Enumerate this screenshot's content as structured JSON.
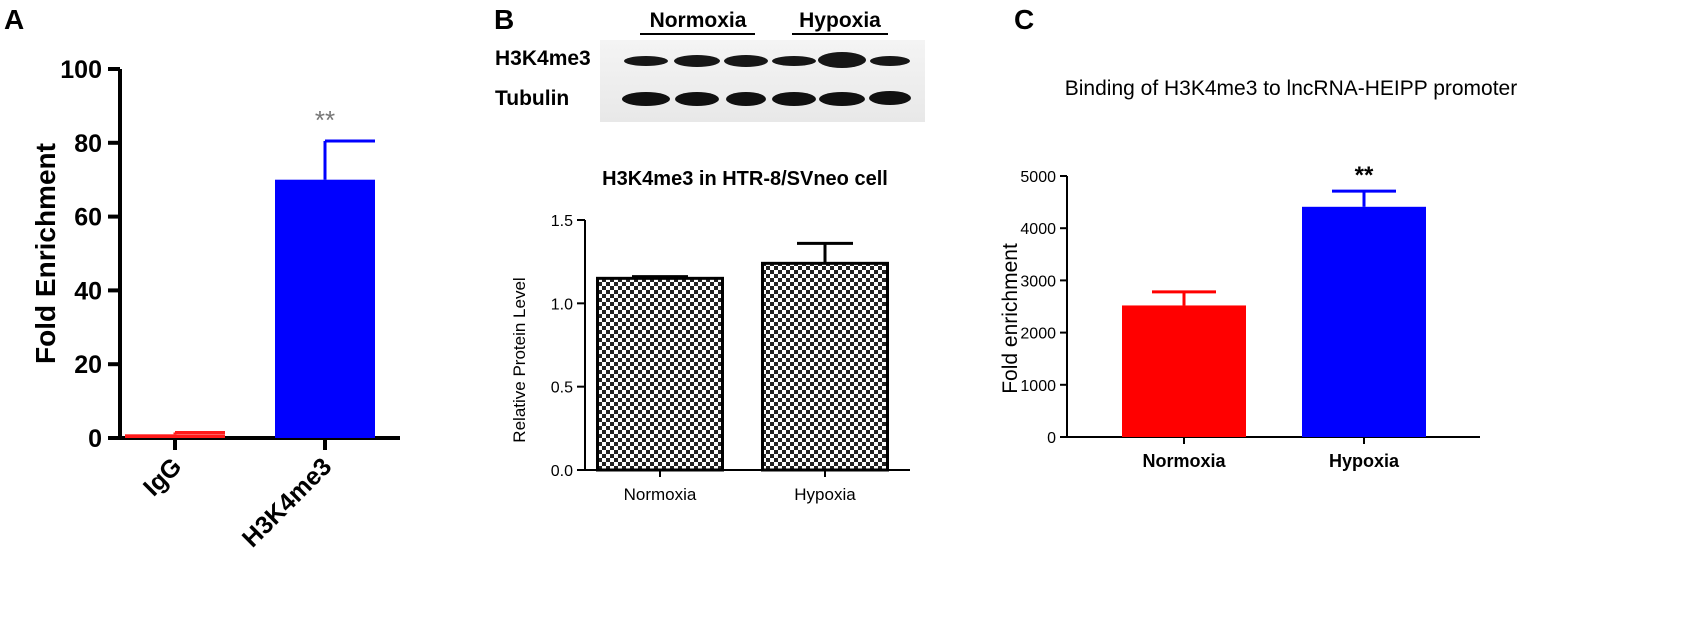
{
  "panels": {
    "a": {
      "letter": "A"
    },
    "b": {
      "letter": "B"
    },
    "c": {
      "letter": "C"
    }
  },
  "blot": {
    "group_labels": [
      "Normoxia",
      "Hypoxia"
    ],
    "row_labels": [
      "H3K4me3",
      "Tubulin"
    ]
  },
  "chart_data": [
    {
      "type": "bar",
      "panel": "A",
      "title": "",
      "xlabel": "",
      "ylabel": "Fold Enrichment",
      "categories": [
        "IgG",
        "H3K4me3"
      ],
      "values": [
        1,
        70
      ],
      "errors": [
        0.5,
        10.5
      ],
      "significance": [
        "",
        "**"
      ],
      "colors": [
        "#ff1a1a",
        "#0000ff"
      ],
      "ylim": [
        0,
        100
      ],
      "yticks": [
        0,
        20,
        40,
        60,
        80,
        100
      ],
      "grid": false
    },
    {
      "type": "bar",
      "panel": "B",
      "title": "H3K4me3 in HTR-8/SVneo cell",
      "xlabel": "",
      "ylabel": "Relative Protein Level",
      "categories": [
        "Normoxia",
        "Hypoxia"
      ],
      "values": [
        1.15,
        1.24
      ],
      "errors": [
        0.01,
        0.12
      ],
      "fill": "checkerboard",
      "ylim": [
        0,
        1.5
      ],
      "yticks": [
        "0.0",
        "0.5",
        "1.0",
        "1.5"
      ],
      "grid": false
    },
    {
      "type": "bar",
      "panel": "C",
      "title": "Binding of H3K4me3 to lncRNA-HEIPP promoter",
      "xlabel": "",
      "ylabel": "Fold enrichment",
      "categories": [
        "Normoxia",
        "Hypoxia"
      ],
      "values": [
        2520,
        4410
      ],
      "errors": [
        260,
        300
      ],
      "significance": [
        "",
        "**"
      ],
      "colors": [
        "#ff0000",
        "#0000ff"
      ],
      "ylim": [
        0,
        5000
      ],
      "yticks": [
        0,
        1000,
        2000,
        3000,
        4000,
        5000
      ],
      "grid": false
    }
  ]
}
